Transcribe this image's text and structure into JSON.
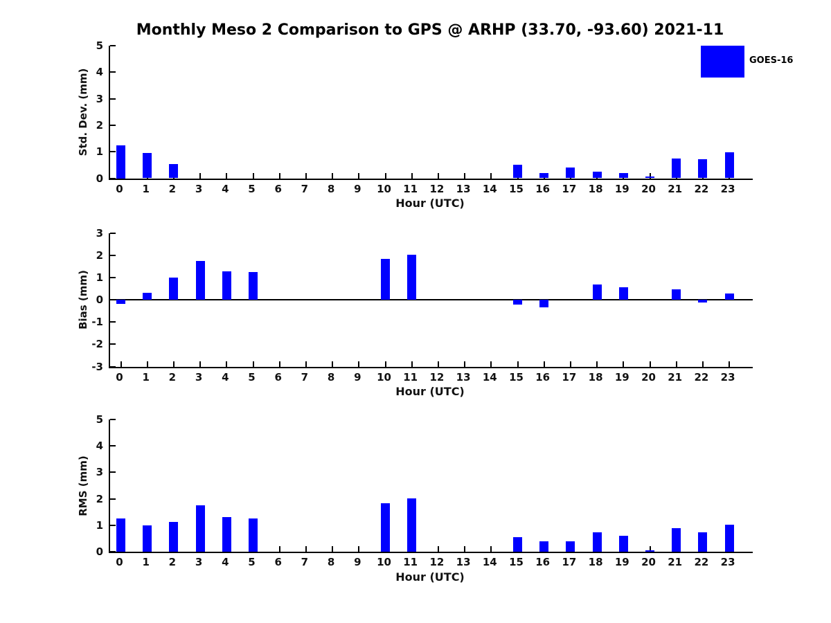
{
  "title": "Monthly Meso 2 Comparison to GPS @ ARHP (33.70, -93.60) 2021-11",
  "legend": {
    "label": "GOES-16",
    "color": "#0000FF"
  },
  "chart_data": {
    "type": "bar",
    "title": "Monthly Meso 2 Comparison to GPS @ ARHP (33.70, -93.60) 2021-11",
    "categories": [
      0,
      1,
      2,
      3,
      4,
      5,
      6,
      7,
      8,
      9,
      10,
      11,
      12,
      13,
      14,
      15,
      16,
      17,
      18,
      19,
      20,
      21,
      22,
      23
    ],
    "xlabel": "Hour (UTC)",
    "bar_color": "#0000FF",
    "legend_entries": [
      "GOES-16"
    ],
    "legend_position": "upper right",
    "grid": false,
    "subplots": [
      {
        "ylabel": "Std. Dev. (mm)",
        "ylim": [
          0,
          5
        ],
        "yticks": [
          0,
          1,
          2,
          3,
          4,
          5
        ],
        "values": [
          1.25,
          0.95,
          0.53,
          0,
          0,
          0,
          0,
          0,
          0,
          0,
          0,
          0,
          0,
          0,
          0,
          0.5,
          0.2,
          0.4,
          0.25,
          0.19,
          0.06,
          0.75,
          0.71,
          0.98
        ]
      },
      {
        "ylabel": "Bias (mm)",
        "ylim": [
          -3,
          3
        ],
        "yticks": [
          3,
          2,
          1,
          0,
          -1,
          -2,
          -3
        ],
        "values": [
          -0.19,
          0.31,
          1.0,
          1.75,
          1.3,
          1.25,
          0,
          0,
          0,
          0,
          1.84,
          2.02,
          0,
          0,
          0,
          -0.2,
          -0.33,
          0,
          0.7,
          0.58,
          0,
          0.46,
          -0.12,
          0.28
        ]
      },
      {
        "ylabel": "RMS (mm)",
        "ylim": [
          0,
          5
        ],
        "yticks": [
          0,
          1,
          2,
          3,
          4,
          5
        ],
        "values": [
          1.26,
          1.0,
          1.13,
          1.75,
          1.3,
          1.25,
          0,
          0,
          0,
          0,
          1.84,
          2.02,
          0,
          0,
          0,
          0.54,
          0.38,
          0.4,
          0.73,
          0.6,
          0.04,
          0.88,
          0.72,
          1.02
        ]
      }
    ]
  }
}
